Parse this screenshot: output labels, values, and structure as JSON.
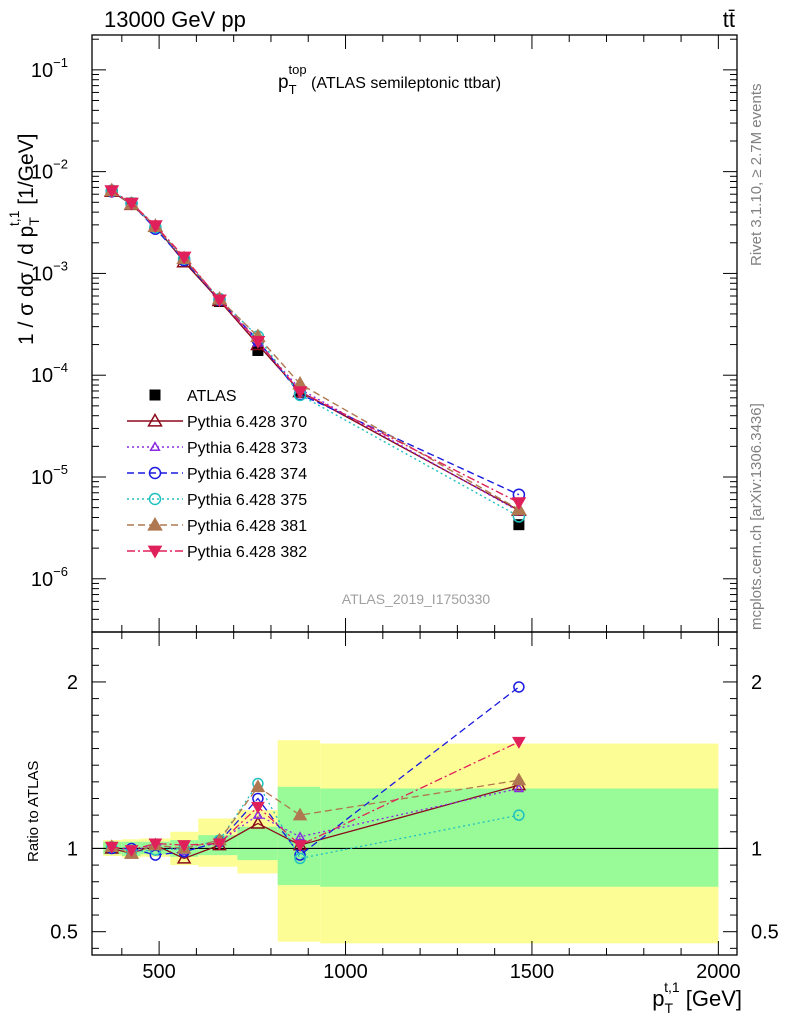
{
  "header": {
    "energy_label": "13000 GeV pp",
    "process_label": "tt̄"
  },
  "side_labels": {
    "rivet": "Rivet 3.1.10, ≥ 2.7M events",
    "mcplots": "mcplots.cern.ch [arXiv:1306.3436]"
  },
  "chart_data": [
    {
      "type": "line",
      "panel": "main",
      "title": "p_T^top (ATLAS semileptonic ttbar)",
      "title_parts": {
        "main": "p",
        "sub": "T",
        "sup": "top",
        "rest": " (ATLAS semileptonic ttbar)"
      },
      "ylabel": "1 / σ dσ / d p_T^{t,1} [1/GeV]",
      "ylabel_parts": {
        "pre": "1 / σ dσ / d p",
        "sub": "T",
        "sup": "t,1",
        "post": " [1/GeV]"
      },
      "yscale": "log",
      "ylim": [
        3e-07,
        0.22
      ],
      "xlim": [
        320,
        2050
      ],
      "yticks": [
        {
          "value": 1e-06,
          "mant": "10",
          "exp": "−6"
        },
        {
          "value": 1e-05,
          "mant": "10",
          "exp": "−5"
        },
        {
          "value": 0.0001,
          "mant": "10",
          "exp": "−4"
        },
        {
          "value": 0.001,
          "mant": "10",
          "exp": "−3"
        },
        {
          "value": 0.01,
          "mant": "10",
          "exp": "−2"
        },
        {
          "value": 0.1,
          "mant": "10",
          "exp": "−1"
        }
      ],
      "watermark": "ATLAS_2019_I1750330",
      "legend_position": "left-middle",
      "x": [
        373,
        426,
        490,
        567,
        662,
        765,
        878,
        1465
      ],
      "series": [
        {
          "name": "ATLAS",
          "color": "#000000",
          "marker": "square",
          "dash": "none",
          "values": [
            0.0064,
            0.0049,
            0.00285,
            0.0014,
            0.00053,
            0.000175,
            6.8e-05,
            3.4e-06
          ]
        },
        {
          "name": "Pythia 6.428 370",
          "color": "#8b0a1a",
          "marker": "triangle-open",
          "dash": "solid",
          "values": [
            0.0064,
            0.00475,
            0.0029,
            0.0013,
            0.00054,
            0.0002,
            6.9e-05,
            4.7e-06
          ]
        },
        {
          "name": "Pythia 6.428 373",
          "color": "#8a2be2",
          "marker": "triangle-open-small",
          "dash": "dotted",
          "values": [
            0.0065,
            0.0048,
            0.00295,
            0.0014,
            0.00055,
            0.00021,
            7.3e-05,
            4.6e-06
          ]
        },
        {
          "name": "Pythia 6.428 374",
          "color": "#1a1ae0",
          "marker": "circle-open",
          "dash": "dashed",
          "values": [
            0.0064,
            0.00485,
            0.00275,
            0.00135,
            0.00055,
            0.00022,
            6.5e-05,
            6.7e-06
          ]
        },
        {
          "name": "Pythia 6.428 375",
          "color": "#20c0c0",
          "marker": "circle-open",
          "dash": "dotted",
          "values": [
            0.0065,
            0.0049,
            0.00285,
            0.0014,
            0.00056,
            0.00024,
            6.4e-05,
            4.1e-06
          ]
        },
        {
          "name": "Pythia 6.428 381",
          "color": "#b07850",
          "marker": "triangle-filled",
          "dash": "dashed",
          "values": [
            0.0065,
            0.0048,
            0.0029,
            0.0014,
            0.00056,
            0.00024,
            8.2e-05,
            4.8e-06
          ]
        },
        {
          "name": "Pythia 6.428 382",
          "color": "#e0205a",
          "marker": "triangle-down-filled",
          "dash": "dashdot",
          "values": [
            0.0065,
            0.0049,
            0.00295,
            0.00145,
            0.00055,
            0.000215,
            6.9e-05,
            5.6e-06
          ]
        }
      ]
    },
    {
      "type": "line",
      "panel": "ratio",
      "ylabel": "Ratio to ATLAS",
      "ylim": [
        0.36,
        2.3
      ],
      "xlim": [
        320,
        2050
      ],
      "yticks": [
        {
          "value": 0.5,
          "label": "0.5"
        },
        {
          "value": 1,
          "label": "1"
        },
        {
          "value": 2,
          "label": "2"
        }
      ],
      "xticks": [
        {
          "value": 500,
          "label": "500"
        },
        {
          "value": 1000,
          "label": "1000"
        },
        {
          "value": 1500,
          "label": "1500"
        },
        {
          "value": 2000,
          "label": "2000"
        }
      ],
      "xlabel": "p_T^{t,1} [GeV]",
      "xlabel_parts": {
        "main": "p",
        "sub": "T",
        "sup": "t,1",
        "rest": " [GeV]"
      },
      "bin_edges": [
        350,
        400,
        450,
        530,
        605,
        710,
        818,
        932,
        2000
      ],
      "band_inner": [
        [
          0.965,
          1.04
        ],
        [
          0.955,
          1.04
        ],
        [
          0.965,
          1.04
        ],
        [
          0.95,
          1.05
        ],
        [
          0.96,
          1.08
        ],
        [
          0.93,
          1.13
        ],
        [
          0.78,
          1.37
        ],
        [
          0.77,
          1.36
        ]
      ],
      "band_outer": [
        [
          0.955,
          1.05
        ],
        [
          0.945,
          1.055
        ],
        [
          0.95,
          1.06
        ],
        [
          0.9,
          1.1
        ],
        [
          0.89,
          1.18
        ],
        [
          0.85,
          1.23
        ],
        [
          0.44,
          1.65
        ],
        [
          0.43,
          1.63
        ]
      ],
      "x": [
        373,
        426,
        490,
        567,
        662,
        765,
        878,
        1465
      ],
      "series": [
        {
          "name": "Pythia 6.428 370",
          "values": [
            1.0,
            0.97,
            1.02,
            0.94,
            1.02,
            1.15,
            1.02,
            1.38
          ]
        },
        {
          "name": "Pythia 6.428 373",
          "values": [
            1.01,
            0.98,
            1.03,
            0.98,
            1.04,
            1.2,
            1.07,
            1.36
          ]
        },
        {
          "name": "Pythia 6.428 374",
          "values": [
            1.0,
            1.0,
            0.96,
            0.98,
            1.04,
            1.3,
            0.96,
            1.97
          ]
        },
        {
          "name": "Pythia 6.428 375",
          "values": [
            1.01,
            0.98,
            0.99,
            1.0,
            1.05,
            1.39,
            0.94,
            1.2
          ]
        },
        {
          "name": "Pythia 6.428 381",
          "values": [
            1.01,
            0.97,
            1.02,
            1.0,
            1.05,
            1.37,
            1.2,
            1.41
          ]
        },
        {
          "name": "Pythia 6.428 382",
          "values": [
            1.01,
            0.99,
            1.03,
            1.02,
            1.03,
            1.25,
            1.02,
            1.64
          ]
        }
      ]
    }
  ]
}
